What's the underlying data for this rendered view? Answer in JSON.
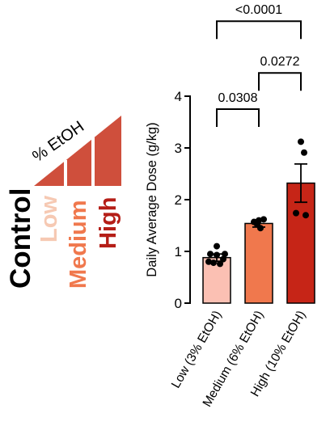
{
  "legend": {
    "control_label": "Control",
    "triangle_label": "% EtOH",
    "levels": [
      {
        "label": "Low",
        "color": "#f6c9b3"
      },
      {
        "label": "Medium",
        "color": "#f0784d"
      },
      {
        "label": "High",
        "color": "#b51e17"
      }
    ],
    "triangle_color": "#cf4f3c"
  },
  "chart_data": {
    "type": "bar",
    "ylabel": "Daily Average Dose (g/kg)",
    "ylim": [
      0,
      4
    ],
    "yticks": [
      "0",
      "1",
      "2",
      "3",
      "4"
    ],
    "categories": [
      "Low (3% EtOH)",
      "Medium (6% EtOH)",
      "High (10% EtOH)"
    ],
    "colors": [
      "#fbc0b3",
      "#f0784d",
      "#c62517"
    ],
    "values": [
      0.88,
      1.54,
      2.32
    ],
    "sem": [
      0.07,
      0.07,
      0.37
    ],
    "points": [
      [
        0.95,
        0.93,
        0.85,
        0.8,
        0.78,
        0.76,
        0.95,
        1.1
      ],
      [
        1.57,
        1.62,
        1.52,
        1.45,
        1.6
      ],
      [
        3.12,
        2.91,
        1.74,
        1.7
      ]
    ],
    "comparisons": [
      {
        "from": 0,
        "to": 1,
        "label": "0.0308",
        "level": 3.75
      },
      {
        "from": 1,
        "to": 2,
        "label": "0.0272",
        "level": 4.45
      },
      {
        "from": 0,
        "to": 2,
        "label": "<0.0001",
        "level": 5.45
      }
    ]
  }
}
